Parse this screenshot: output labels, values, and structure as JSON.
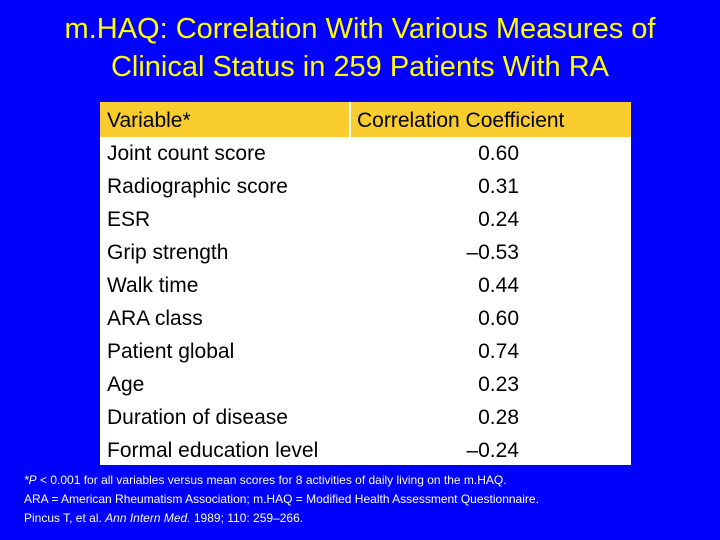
{
  "title": {
    "line1": "m.HAQ: Correlation With Various Measures of",
    "line2": "Clinical Status in 259 Patients With RA"
  },
  "table": {
    "headers": {
      "variable": "Variable*",
      "coefficient": "Correlation Coefficient"
    },
    "rows": [
      {
        "variable": "Joint count score",
        "coefficient": "0.60"
      },
      {
        "variable": "Radiographic score",
        "coefficient": "0.31"
      },
      {
        "variable": "ESR",
        "coefficient": "0.24"
      },
      {
        "variable": "Grip strength",
        "coefficient": "–0.53"
      },
      {
        "variable": "Walk time",
        "coefficient": "0.44"
      },
      {
        "variable": "ARA class",
        "coefficient": "0.60"
      },
      {
        "variable": "Patient global",
        "coefficient": "0.74"
      },
      {
        "variable": "Age",
        "coefficient": "0.23"
      },
      {
        "variable": "Duration of disease",
        "coefficient": "0.28"
      },
      {
        "variable": "Formal education level",
        "coefficient": "–0.24"
      }
    ]
  },
  "footnote": {
    "line1_p": "*P",
    "line1_rest": " < 0.001 for all variables versus mean scores for 8 activities of daily living on the m.HAQ.",
    "line2": "ARA = American Rheumatism Association; m.HAQ = Modified Health Assessment Questionnaire.",
    "line3_authors": "Pincus T, et al. ",
    "line3_journal": "Ann Intern Med.",
    "line3_rest": " 1989; 110: 259–266."
  },
  "colors": {
    "background": "#0000ff",
    "title": "#ffff00",
    "header": "#f9cc30",
    "table": "#ffffff"
  }
}
